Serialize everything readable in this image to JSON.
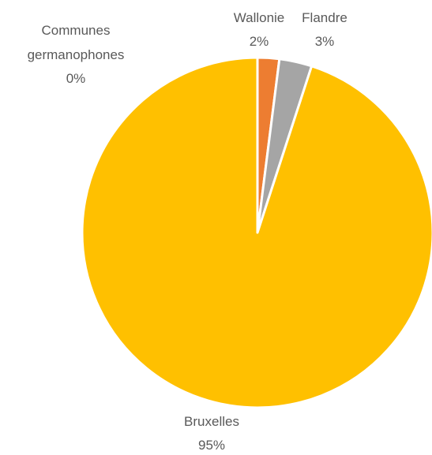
{
  "chart_data": {
    "type": "pie",
    "title": "",
    "slices": [
      {
        "label": "Wallonie",
        "value": 2,
        "value_label": "2%",
        "color": "#ED7D31"
      },
      {
        "label": "Flandre",
        "value": 3,
        "value_label": "3%",
        "color": "#A5A5A5"
      },
      {
        "label": "Communes germanophones",
        "value": 0,
        "value_label": "0%",
        "color": "#5B9BD5"
      },
      {
        "label": "Bruxelles",
        "value": 95,
        "value_label": "95%",
        "color": "#FFC000"
      }
    ],
    "legend": "none",
    "start_angle": "top",
    "direction": "clockwise",
    "data_labels": "category name and percentage"
  }
}
